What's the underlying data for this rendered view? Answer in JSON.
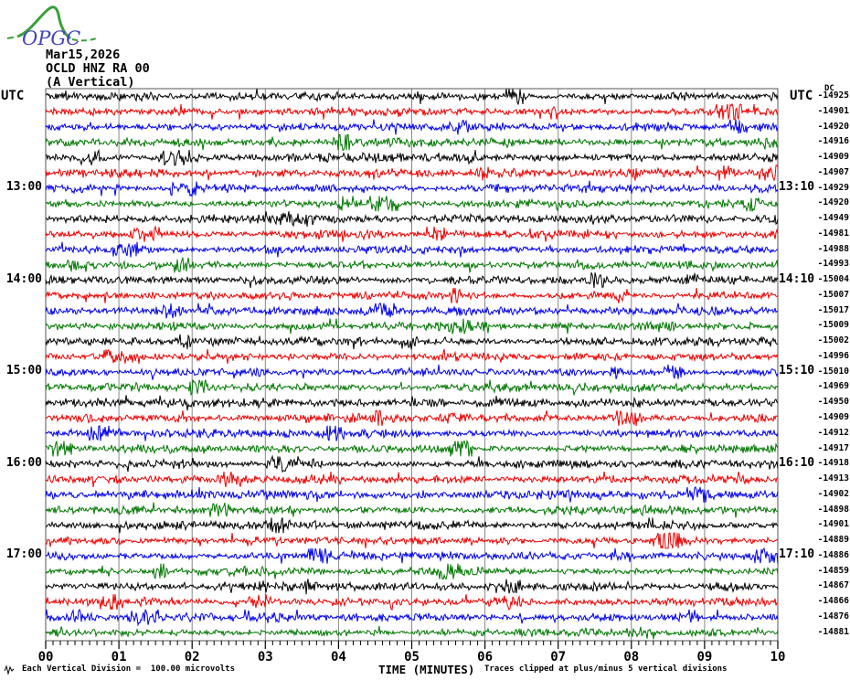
{
  "logo": {
    "text": "OPGC"
  },
  "header": {
    "date": "Mar15,2026",
    "station": "OCLD HNZ RA 00",
    "component": "(A Vertical)"
  },
  "axis": {
    "left_header": "UTC",
    "right_header": "UTC",
    "dc_header": "DC",
    "x_title": "TIME (MINUTES)",
    "x_tick_labels": [
      "00",
      "01",
      "02",
      "03",
      "04",
      "05",
      "06",
      "07",
      "08",
      "09",
      "10"
    ]
  },
  "footer": {
    "scale_note": "Each Vertical Division =  100.00 microvolts",
    "clip_note": "Traces clipped at plus/minus 5 vertical divisions"
  },
  "colors": {
    "background": "#ffffff",
    "grid": "#888888",
    "border": "#555555",
    "axis": "#000000",
    "text": "#000000",
    "logo_green": "#3aa03a",
    "logo_blue": "#4444bb",
    "trace_cycle": [
      "#000000",
      "#ee0000",
      "#0000ee",
      "#007700"
    ]
  },
  "chart_data": {
    "type": "line",
    "subtype": "helicorder-seismogram",
    "title": "OCLD HNZ RA 00 (A Vertical) Mar15,2026",
    "xlabel": "TIME (MINUTES)",
    "x_range_minutes": [
      0,
      10
    ],
    "x_major_tick_minutes": 1,
    "x_minor_tick_minutes": 0.1,
    "row_duration_minutes": 10,
    "left_axis_unit": "UTC",
    "right_axis_unit": "UTC",
    "dc_column_header": "DC",
    "grid": "vertical-minute-lines",
    "rows": [
      {
        "left_label": "",
        "right_label": "",
        "dc": "-14925",
        "color": "#000000"
      },
      {
        "left_label": "",
        "right_label": "",
        "dc": "-14901",
        "color": "#ee0000"
      },
      {
        "left_label": "",
        "right_label": "",
        "dc": "-14920",
        "color": "#0000ee"
      },
      {
        "left_label": "",
        "right_label": "",
        "dc": "-14916",
        "color": "#007700"
      },
      {
        "left_label": "",
        "right_label": "",
        "dc": "-14909",
        "color": "#000000"
      },
      {
        "left_label": "",
        "right_label": "",
        "dc": "-14907",
        "color": "#ee0000"
      },
      {
        "left_label": "13:00",
        "right_label": "13:10",
        "dc": "-14929",
        "color": "#0000ee"
      },
      {
        "left_label": "",
        "right_label": "",
        "dc": "-14920",
        "color": "#007700"
      },
      {
        "left_label": "",
        "right_label": "",
        "dc": "-14949",
        "color": "#000000"
      },
      {
        "left_label": "",
        "right_label": "",
        "dc": "-14981",
        "color": "#ee0000"
      },
      {
        "left_label": "",
        "right_label": "",
        "dc": "-14988",
        "color": "#0000ee"
      },
      {
        "left_label": "",
        "right_label": "",
        "dc": "-14993",
        "color": "#007700"
      },
      {
        "left_label": "14:00",
        "right_label": "14:10",
        "dc": "-15004",
        "color": "#000000"
      },
      {
        "left_label": "",
        "right_label": "",
        "dc": "-15007",
        "color": "#ee0000"
      },
      {
        "left_label": "",
        "right_label": "",
        "dc": "-15017",
        "color": "#0000ee"
      },
      {
        "left_label": "",
        "right_label": "",
        "dc": "-15009",
        "color": "#007700"
      },
      {
        "left_label": "",
        "right_label": "",
        "dc": "-15002",
        "color": "#000000"
      },
      {
        "left_label": "",
        "right_label": "",
        "dc": "-14996",
        "color": "#ee0000"
      },
      {
        "left_label": "15:00",
        "right_label": "15:10",
        "dc": "-15010",
        "color": "#0000ee"
      },
      {
        "left_label": "",
        "right_label": "",
        "dc": "-14969",
        "color": "#007700"
      },
      {
        "left_label": "",
        "right_label": "",
        "dc": "-14950",
        "color": "#000000"
      },
      {
        "left_label": "",
        "right_label": "",
        "dc": "-14909",
        "color": "#ee0000"
      },
      {
        "left_label": "",
        "right_label": "",
        "dc": "-14912",
        "color": "#0000ee"
      },
      {
        "left_label": "",
        "right_label": "",
        "dc": "-14917",
        "color": "#007700"
      },
      {
        "left_label": "16:00",
        "right_label": "16:10",
        "dc": "-14918",
        "color": "#000000"
      },
      {
        "left_label": "",
        "right_label": "",
        "dc": "-14913",
        "color": "#ee0000"
      },
      {
        "left_label": "",
        "right_label": "",
        "dc": "-14902",
        "color": "#0000ee"
      },
      {
        "left_label": "",
        "right_label": "",
        "dc": "-14898",
        "color": "#007700"
      },
      {
        "left_label": "",
        "right_label": "",
        "dc": "-14901",
        "color": "#000000"
      },
      {
        "left_label": "",
        "right_label": "",
        "dc": "-14889",
        "color": "#ee0000"
      },
      {
        "left_label": "17:00",
        "right_label": "17:10",
        "dc": "-14886",
        "color": "#0000ee"
      },
      {
        "left_label": "",
        "right_label": "",
        "dc": "-14859",
        "color": "#007700"
      },
      {
        "left_label": "",
        "right_label": "",
        "dc": "-14867",
        "color": "#000000"
      },
      {
        "left_label": "",
        "right_label": "",
        "dc": "-14866",
        "color": "#ee0000"
      },
      {
        "left_label": "",
        "right_label": "",
        "dc": "-14876",
        "color": "#0000ee"
      },
      {
        "left_label": "",
        "right_label": "",
        "dc": "-14881",
        "color": "#007700"
      }
    ]
  }
}
